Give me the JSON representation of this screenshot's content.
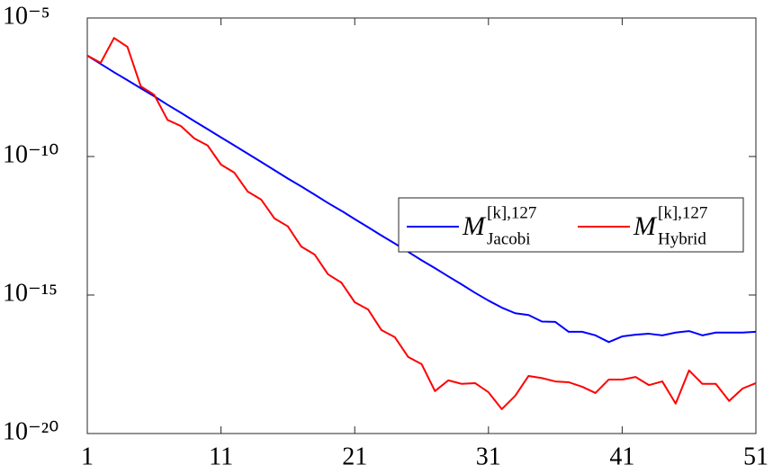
{
  "chart_data": {
    "type": "line",
    "yscale": "log",
    "x": [
      1,
      2,
      3,
      4,
      5,
      6,
      7,
      8,
      9,
      10,
      11,
      12,
      13,
      14,
      15,
      16,
      17,
      18,
      19,
      20,
      21,
      22,
      23,
      24,
      25,
      26,
      27,
      28,
      29,
      30,
      31,
      32,
      33,
      34,
      35,
      36,
      37,
      38,
      39,
      40,
      41,
      42,
      43,
      44,
      45,
      46,
      47,
      48,
      49,
      50,
      51
    ],
    "xlim": [
      1,
      51
    ],
    "xticks": [
      1,
      11,
      21,
      31,
      41,
      51
    ],
    "ylim": [
      1e-20,
      1e-05
    ],
    "yticks": [
      {
        "value": 1e-20,
        "label": "10⁻²⁰"
      },
      {
        "value": 1e-15,
        "label": "10⁻¹⁵"
      },
      {
        "value": 1e-10,
        "label": "10⁻¹⁰"
      },
      {
        "value": 1e-05,
        "label": "10⁻⁵"
      }
    ],
    "legend": "right",
    "series": [
      {
        "name": "M",
        "superscript": "[k],127",
        "subscript": "Jacobi",
        "color": "#0000ff",
        "values": [
          4.4e-07,
          2.2e-07,
          1.1e-07,
          5.7e-08,
          2.9e-08,
          1.5e-08,
          7.4e-09,
          3.8e-09,
          1.9e-09,
          9.7e-10,
          4.9e-10,
          2.5e-10,
          1.26e-10,
          6.4e-11,
          3.2e-11,
          1.6e-11,
          8.3e-12,
          4.2e-12,
          2.1e-12,
          1.1e-12,
          5.5e-13,
          2.8e-13,
          1.4e-13,
          7.2e-14,
          3.6e-14,
          1.8e-14,
          9.3e-15,
          4.7e-15,
          2.4e-15,
          1.2e-15,
          6.3e-16,
          3.5e-16,
          2.2e-16,
          1.9e-16,
          1.1e-16,
          1.07e-16,
          4.7e-17,
          4.7e-17,
          3.5e-17,
          2e-17,
          3.2e-17,
          3.7e-17,
          4e-17,
          3.5e-17,
          4.4e-17,
          5e-17,
          3.5e-17,
          4.4e-17,
          4.4e-17,
          4.4e-17,
          4.7e-17
        ]
      },
      {
        "name": "M",
        "superscript": "[k],127",
        "subscript": "Hybrid",
        "color": "#ff0000",
        "values": [
          4.4e-07,
          2.4e-07,
          1.9e-06,
          9.1e-07,
          3.4e-08,
          1.7e-08,
          2.1e-09,
          1.26e-09,
          4.5e-10,
          2.5e-10,
          5.1e-11,
          2.6e-11,
          5.4e-12,
          2.8e-12,
          5.8e-13,
          3e-13,
          5.6e-14,
          2.9e-14,
          5.6e-15,
          2.8e-15,
          5.5e-16,
          3e-16,
          5.4e-17,
          3e-17,
          5.8e-18,
          3.2e-18,
          3.4e-19,
          8.3e-19,
          6.2e-19,
          6.6e-19,
          3.1e-19,
          7.6e-20,
          2.3e-19,
          1.2e-18,
          1e-18,
          7.6e-19,
          7.1e-19,
          4.9e-19,
          2.9e-19,
          8.9e-19,
          8.9e-19,
          1.1e-18,
          5.6e-19,
          7.6e-19,
          1.2e-19,
          1.9e-18,
          6.2e-19,
          6.2e-19,
          1.5e-19,
          4.2e-19,
          6.6e-19
        ]
      }
    ]
  }
}
